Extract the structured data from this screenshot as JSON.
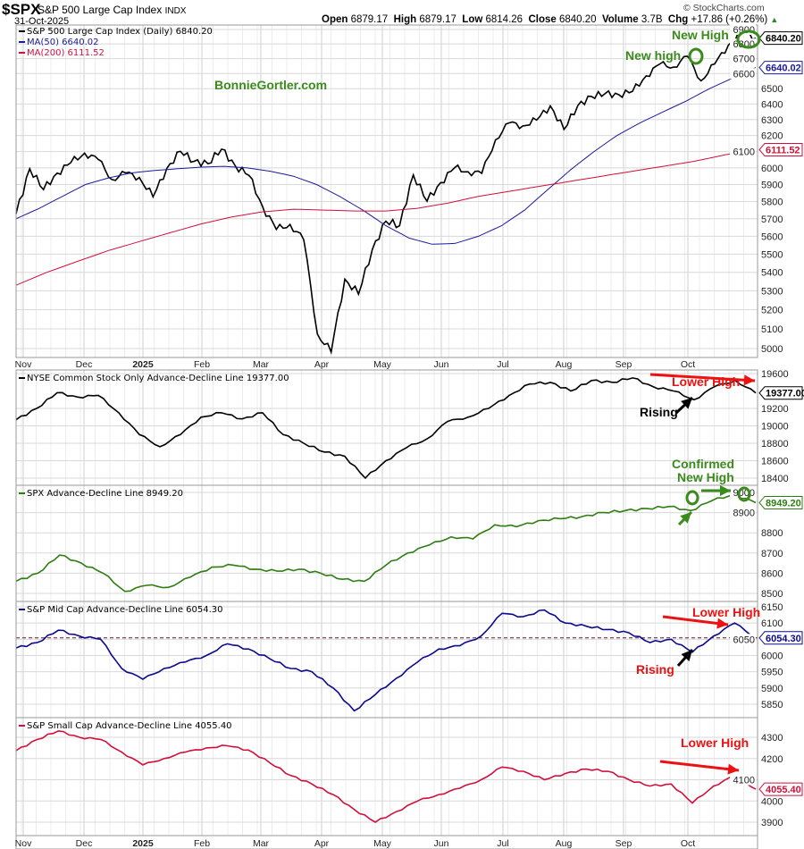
{
  "header": {
    "symbol": "$SPX",
    "name": "S&P 500 Large Cap Index",
    "exchange": "INDX",
    "date": "31-Oct-2025",
    "open_label": "Open",
    "open": "6879.17",
    "high_label": "High",
    "high": "6879.17",
    "low_label": "Low",
    "low": "6814.26",
    "close_label": "Close",
    "close": "6840.20",
    "volume_label": "Volume",
    "volume": "3.7B",
    "chg_label": "Chg",
    "chg": "+17.86 (+0.26%)",
    "copyright": "© StockCharts.com"
  },
  "watermark": "BonnieGortler.com",
  "colors": {
    "price": "#000000",
    "ma50": "#1a1a9c",
    "ma200": "#d0103a",
    "spx_ad": "#2e7d10",
    "mid_ad": "#0a0a8a",
    "small_ad": "#d0103a",
    "annot_green": "#3a8a1c",
    "annot_red": "#ee1111",
    "grid": "#d8d8d8"
  },
  "x_labels": [
    "Nov",
    "Dec",
    "2025",
    "Feb",
    "Mar",
    "Apr",
    "May",
    "Jun",
    "Jul",
    "Aug",
    "Sep",
    "Oct"
  ],
  "chart_data": [
    {
      "type": "line",
      "title": "S&P 500 Large Cap Index (Daily) 6840.20",
      "scale": "log",
      "ylim": [
        5000,
        6900
      ],
      "yticks": [
        6900,
        6800,
        6700,
        6600,
        6500,
        6400,
        6300,
        6200,
        6100,
        6000,
        5900,
        5800,
        5700,
        5600,
        5500,
        5400,
        5300,
        5200,
        5100,
        5000
      ],
      "x_range": [
        "Nov 2024",
        "Oct 31 2025"
      ],
      "series": [
        {
          "name": "S&P 500 Large Cap Index (Daily) 6840.20",
          "last": "6840.20",
          "values": [
            5728,
            5995,
            5870,
            5969,
            6032,
            6090,
            6051,
            5930,
            5970,
            5942,
            5827,
            5997,
            6101,
            6040,
            6026,
            6115,
            6013,
            5955,
            5770,
            5639,
            5667,
            5581,
            5074,
            4982,
            5363,
            5282,
            5525,
            5686,
            5660,
            5958,
            5802,
            5912,
            6000,
            5977,
            5967,
            6173,
            6279,
            6260,
            6297,
            6388,
            6238,
            6389,
            6449,
            6467,
            6460,
            6482,
            6584,
            6664,
            6643,
            6716,
            6552,
            6664,
            6791,
            6890,
            6840
          ]
        },
        {
          "name": "MA(50) 6640.02",
          "last": "6640.02",
          "values": [
            5700,
            5760,
            5830,
            5900,
            5940,
            5970,
            5985,
            5995,
            6005,
            6010,
            6000,
            5980,
            5950,
            5900,
            5830,
            5750,
            5660,
            5590,
            5555,
            5560,
            5600,
            5660,
            5750,
            5870,
            5990,
            6100,
            6200,
            6280,
            6350,
            6420,
            6500,
            6570,
            6640
          ]
        },
        {
          "name": "MA(200) 6111.52",
          "last": "6111.52",
          "values": [
            5330,
            5400,
            5460,
            5520,
            5570,
            5620,
            5670,
            5710,
            5740,
            5755,
            5750,
            5745,
            5745,
            5760,
            5790,
            5830,
            5860,
            5890,
            5920,
            5950,
            5980,
            6010,
            6040,
            6080,
            6111.52
          ]
        }
      ]
    },
    {
      "type": "line",
      "title": "NYSE Common Stock Only Advance-Decline Line 19377.00",
      "ylim": [
        18400,
        19600
      ],
      "yticks": [
        19600,
        19200,
        19000,
        18800,
        18600,
        18400
      ],
      "series": [
        {
          "name": "NYSE Common Stock Only Advance-Decline Line",
          "last": "19377.00",
          "values": [
            19070,
            19200,
            19380,
            19330,
            19350,
            19150,
            18900,
            18760,
            18900,
            19100,
            19150,
            19080,
            19150,
            18900,
            18800,
            18700,
            18650,
            18400,
            18600,
            18750,
            18850,
            19050,
            19100,
            19200,
            19350,
            19480,
            19500,
            19400,
            19520,
            19500,
            19550,
            19450,
            19400,
            19300,
            19450,
            19520,
            19377
          ]
        }
      ]
    },
    {
      "type": "line",
      "title": "SPX Advance-Decline Line 8949.20",
      "ylim": [
        8500,
        9000
      ],
      "yticks": [
        9000,
        8900,
        8800,
        8700,
        8600,
        8500
      ],
      "series": [
        {
          "name": "SPX Advance-Decline Line",
          "last": "8949.20",
          "values": [
            8560,
            8600,
            8690,
            8650,
            8600,
            8510,
            8540,
            8530,
            8580,
            8630,
            8640,
            8620,
            8610,
            8620,
            8600,
            8570,
            8560,
            8640,
            8700,
            8740,
            8780,
            8770,
            8840,
            8830,
            8860,
            8870,
            8880,
            8900,
            8910,
            8920,
            8930,
            8910,
            8960,
            8990,
            8949.2
          ]
        }
      ]
    },
    {
      "type": "line",
      "title": "S&P Mid Cap Advance-Decline Line 6054.30",
      "ylim": [
        5850,
        6150
      ],
      "yticks": [
        6150,
        6100,
        6050,
        6000,
        5950,
        5900,
        5850
      ],
      "reference_line": 6054.3,
      "series": [
        {
          "name": "S&P Mid Cap Advance-Decline Line",
          "last": "6054.30",
          "values": [
            6023,
            6040,
            6078,
            6060,
            6050,
            5960,
            5927,
            5960,
            5980,
            6000,
            6036,
            6020,
            5990,
            5960,
            5950,
            5900,
            5830,
            5880,
            5930,
            5980,
            6020,
            6030,
            6060,
            6130,
            6120,
            6140,
            6100,
            6090,
            6080,
            6070,
            6040,
            6050,
            6010,
            6060,
            6100,
            6054.3
          ]
        }
      ]
    },
    {
      "type": "line",
      "title": "S&P Small Cap Advance-Decline Line 4055.40",
      "ylim": [
        3900,
        4300
      ],
      "yticks": [
        4300,
        4200,
        4100,
        4000,
        3900
      ],
      "series": [
        {
          "name": "S&P Small Cap Advance-Decline Line",
          "last": "4055.40",
          "values": [
            4237,
            4290,
            4330,
            4300,
            4290,
            4230,
            4170,
            4200,
            4230,
            4250,
            4260,
            4240,
            4180,
            4120,
            4080,
            4030,
            3960,
            3900,
            3950,
            4000,
            4030,
            4060,
            4100,
            4160,
            4140,
            4100,
            4130,
            4150,
            4140,
            4100,
            4070,
            4080,
            3990,
            4070,
            4120,
            4055.4
          ]
        }
      ]
    }
  ],
  "annotations": {
    "new_high_top": "New High",
    "new_high_small": "New high",
    "lower_high_1": "Lower High",
    "rising_1": "Rising",
    "confirmed_1": "Confirmed",
    "confirmed_2": "New High",
    "lower_high_2": "Lower High",
    "rising_2": "Rising",
    "lower_high_3": "Lower High"
  }
}
